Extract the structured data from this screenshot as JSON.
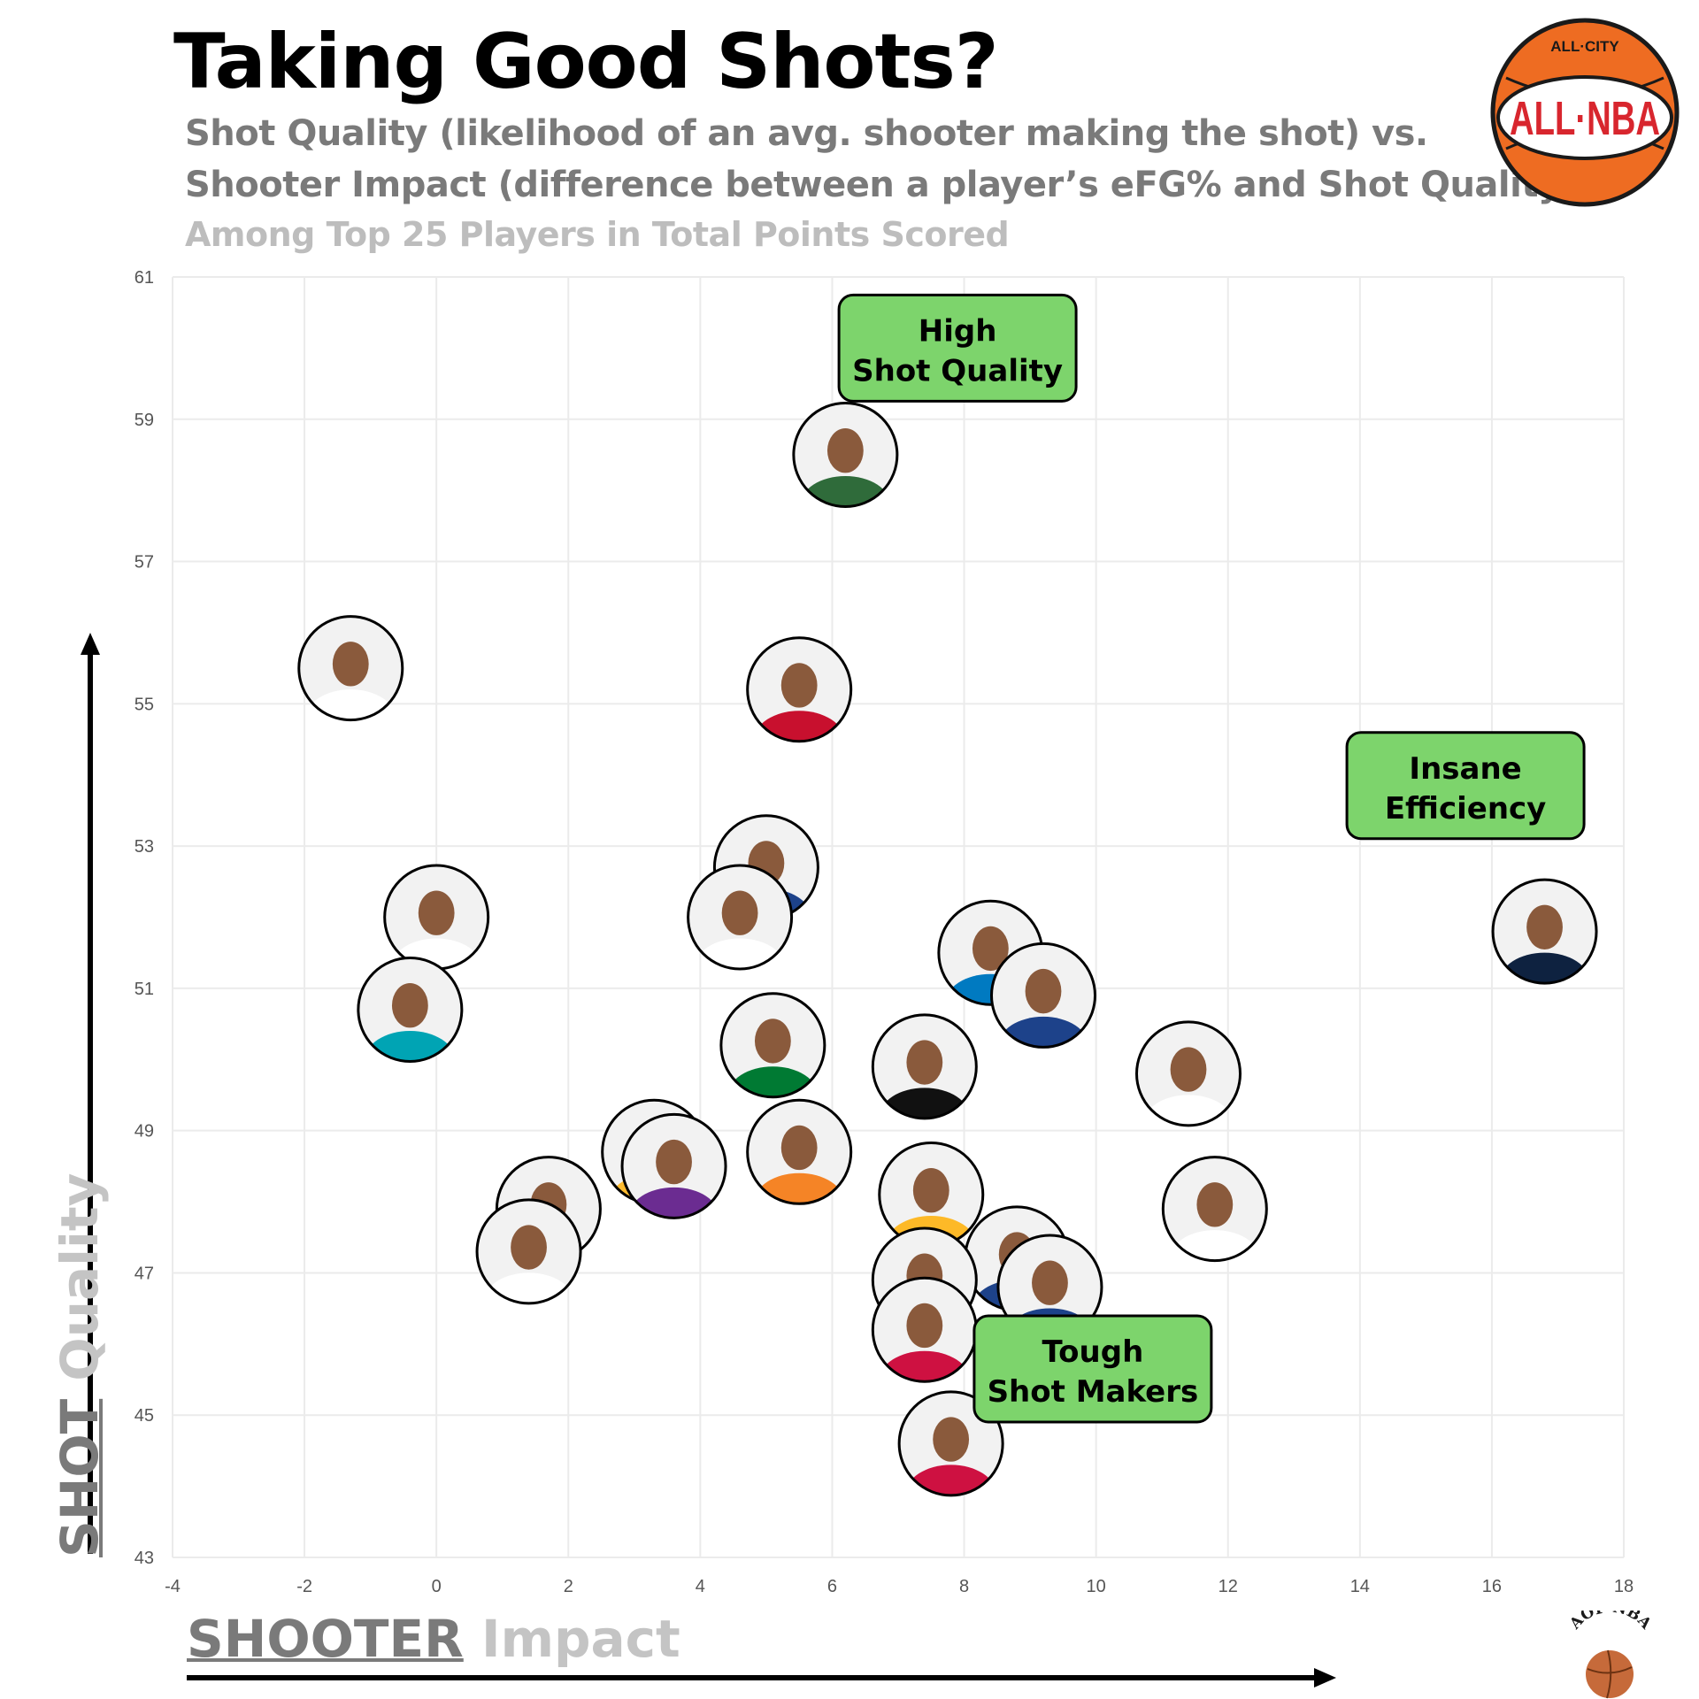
{
  "header": {
    "title": "Taking Good Shots?",
    "subtitle_line1": "Shot Quality (likelihood of an avg. shooter making the shot) vs.",
    "subtitle_line2": "Shooter Impact (difference between a player’s eFG% and Shot Quality)",
    "subtitle_line3": "Among Top 25 Players in Total Points Scored"
  },
  "axes": {
    "x_title_word1": "SHOOTER",
    "x_title_word2": "Impact",
    "y_title_word1": "SHOT",
    "y_title_word2": "Quality"
  },
  "quadrant_labels": [
    {
      "line1": "High",
      "line2": "Shot Quality",
      "x": 7.9,
      "y": 60.0
    },
    {
      "line1": "Insane",
      "line2": "Efficiency",
      "x": 15.6,
      "y": 53.85
    },
    {
      "line1": "Tough",
      "line2": "Shot Makers",
      "x": 9.95,
      "y": 45.65
    }
  ],
  "logos": {
    "top_right_line1": "ALL·CITY",
    "top_right_line2": "ALL·NBA",
    "bottom_right": "AOP NBA"
  },
  "colors": {
    "quadrant_box": "#7dd46c",
    "axis_arrow": "#000000",
    "grid": "#ebebeb",
    "avatar_skin": "#8a5a3c",
    "avatar_bg": "#f2f2f2"
  },
  "chart_data": {
    "type": "scatter",
    "xlim": [
      -4,
      18
    ],
    "ylim": [
      43,
      61
    ],
    "x_ticks": [
      -4,
      -2,
      0,
      2,
      4,
      6,
      8,
      10,
      12,
      14,
      16,
      18
    ],
    "y_ticks": [
      43,
      45,
      47,
      49,
      51,
      53,
      55,
      57,
      59,
      61
    ],
    "grid": true,
    "marker": "player headshot circles (25 players, unlabeled)",
    "points": [
      {
        "x": 6.2,
        "y": 58.5,
        "jersey": "#2f6b3a"
      },
      {
        "x": -1.3,
        "y": 55.5,
        "jersey": "#ffffff"
      },
      {
        "x": 5.5,
        "y": 55.2,
        "jersey": "#c8102e"
      },
      {
        "x": 5.0,
        "y": 52.7,
        "jersey": "#1d428a"
      },
      {
        "x": 4.6,
        "y": 52.0,
        "jersey": "#ffffff"
      },
      {
        "x": 0.0,
        "y": 52.0,
        "jersey": "#ffffff"
      },
      {
        "x": -0.4,
        "y": 50.7,
        "jersey": "#00a4b4"
      },
      {
        "x": 5.1,
        "y": 50.2,
        "jersey": "#007a33"
      },
      {
        "x": 7.4,
        "y": 49.9,
        "jersey": "#111111"
      },
      {
        "x": 8.4,
        "y": 51.5,
        "jersey": "#007ac1"
      },
      {
        "x": 9.2,
        "y": 50.9,
        "jersey": "#1d428a"
      },
      {
        "x": 11.4,
        "y": 49.8,
        "jersey": "#ffffff"
      },
      {
        "x": 16.8,
        "y": 51.8,
        "jersey": "#0e2240"
      },
      {
        "x": 3.3,
        "y": 48.7,
        "jersey": "#fdbb30"
      },
      {
        "x": 3.6,
        "y": 48.5,
        "jersey": "#6b2c91"
      },
      {
        "x": 5.5,
        "y": 48.7,
        "jersey": "#f58426"
      },
      {
        "x": 1.7,
        "y": 47.9,
        "jersey": "#ffffff"
      },
      {
        "x": 1.4,
        "y": 47.3,
        "jersey": "#ffffff"
      },
      {
        "x": 7.5,
        "y": 48.1,
        "jersey": "#fdb927"
      },
      {
        "x": 11.8,
        "y": 47.9,
        "jersey": "#ffffff"
      },
      {
        "x": 8.8,
        "y": 47.2,
        "jersey": "#1d428a"
      },
      {
        "x": 9.3,
        "y": 46.8,
        "jersey": "#1d428a"
      },
      {
        "x": 7.4,
        "y": 46.9,
        "jersey": "#fdb927"
      },
      {
        "x": 7.4,
        "y": 46.2,
        "jersey": "#ce1141"
      },
      {
        "x": 7.8,
        "y": 44.6,
        "jersey": "#ce1141"
      }
    ]
  }
}
